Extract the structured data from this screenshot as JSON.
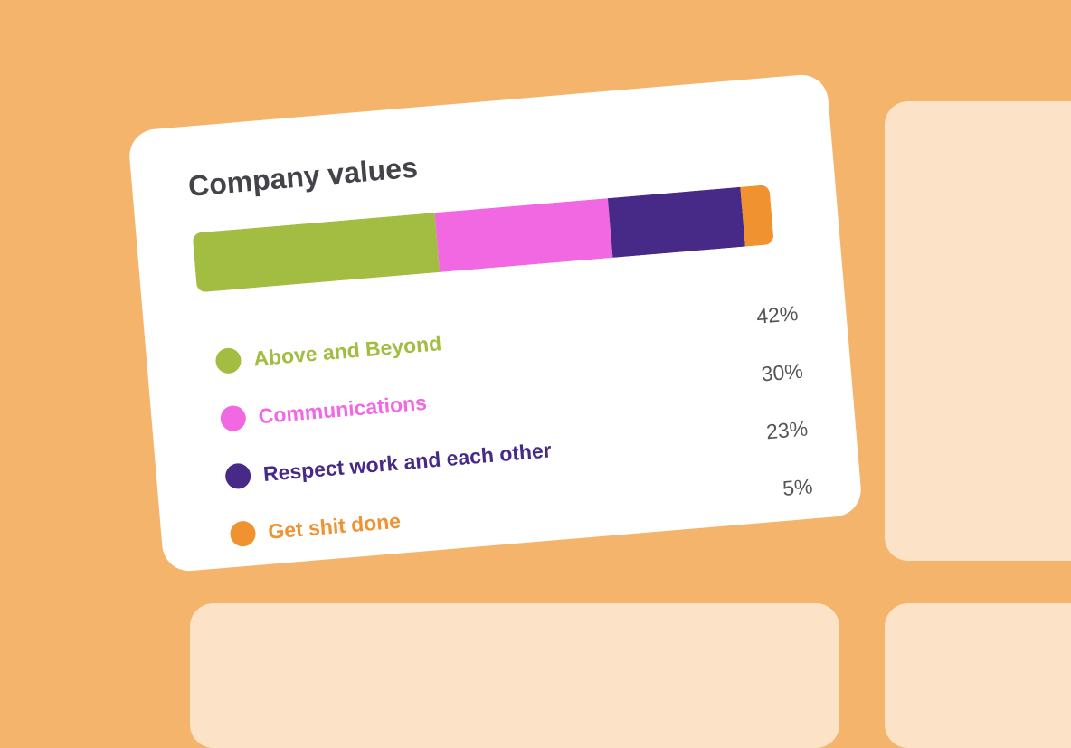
{
  "chart_data": {
    "type": "stacked-bar",
    "title": "Company values",
    "series": [
      {
        "name": "Above and Beyond",
        "color": "#a2bd42",
        "values": [
          42
        ],
        "value_labels": [
          "42%"
        ]
      },
      {
        "name": "Communications",
        "color": "#f268e3",
        "values": [
          30
        ],
        "value_labels": [
          "30%"
        ]
      },
      {
        "name": "Respect work and each other",
        "color": "#472a87",
        "values": [
          23
        ],
        "value_labels": [
          "23%"
        ]
      },
      {
        "name": "Get shit done",
        "color": "#f0922f",
        "values": [
          5
        ],
        "value_labels": [
          "5%"
        ]
      }
    ]
  }
}
